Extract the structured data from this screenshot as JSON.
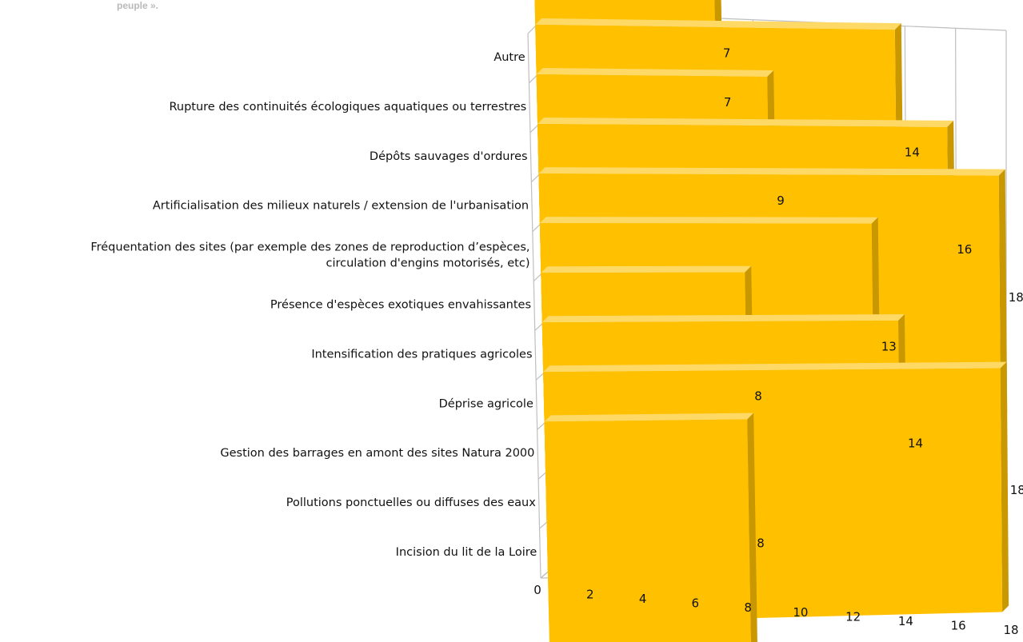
{
  "caption": "peuple ».",
  "chart_data": {
    "type": "bar",
    "orientation": "horizontal",
    "three_d": true,
    "categories": [
      "Autre",
      "Rupture des continuités écologiques aquatiques ou terrestres",
      "Dépôts sauvages d'ordures",
      "Artificialisation des milieux naturels / extension de l'urbanisation",
      "Fréquentation des sites (par exemple des zones de reproduction d’espèces, circulation d'engins motorisés, etc)",
      "Présence d'espèces exotiques envahissantes",
      "Intensification des pratiques agricoles",
      "Déprise agricole",
      "Gestion des barrages en amont des sites Natura 2000",
      "Pollutions ponctuelles ou diffuses des eaux",
      "Incision du lit de la Loire"
    ],
    "category_label_lines": [
      [
        "Autre"
      ],
      [
        "Rupture des continuités écologiques aquatiques ou terrestres"
      ],
      [
        "Dépôts sauvages d'ordures"
      ],
      [
        "Artificialisation des milieux naturels / extension de l'urbanisation"
      ],
      [
        "Fréquentation des sites (par exemple des zones de reproduction d’espèces,",
        "circulation d'engins motorisés, etc)"
      ],
      [
        "Présence d'espèces exotiques envahissantes"
      ],
      [
        "Intensification des pratiques agricoles"
      ],
      [
        "Déprise agricole"
      ],
      [
        "Gestion des barrages en amont des sites Natura 2000"
      ],
      [
        "Pollutions ponctuelles ou diffuses des eaux"
      ],
      [
        "Incision du lit de la Loire"
      ]
    ],
    "values": [
      7,
      7,
      14,
      9,
      16,
      18,
      13,
      8,
      14,
      18,
      8
    ],
    "x_ticks": [
      "0",
      "2",
      "4",
      "6",
      "8",
      "10",
      "12",
      "14",
      "16",
      "18"
    ],
    "xlim": [
      0,
      18
    ],
    "grid": true,
    "colors": {
      "bar_front": "#ffc000",
      "bar_top": "#ffd966",
      "bar_side": "#c99800",
      "grid": "#bfbfbf"
    }
  }
}
